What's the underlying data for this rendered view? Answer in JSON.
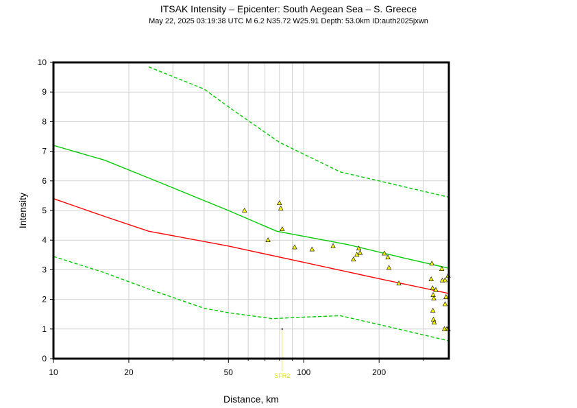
{
  "header": {
    "title": "ITSAK Intensity –  Epicenter: South Aegean Sea – S. Greece",
    "subtitle": "May 22, 2025 03:19:38 UTC   M 6.2   N35.72 W25.91   Depth: 53.0km   ID:auth2025jxwn"
  },
  "chart_data": {
    "type": "scatter",
    "title": "ITSAK Intensity –  Epicenter: South Aegean Sea – S. Greece",
    "xlabel": "Distance, km",
    "ylabel": "Intensity",
    "xscale": "log",
    "xlim": [
      10,
      380
    ],
    "ylim": [
      0,
      10
    ],
    "x_ticks": [
      10,
      20,
      50,
      100,
      200
    ],
    "x_tick_labels": [
      "10",
      "20",
      "50",
      "100",
      "200"
    ],
    "y_ticks": [
      0,
      1,
      2,
      3,
      4,
      5,
      6,
      7,
      8,
      9,
      10
    ],
    "y_tick_labels": [
      "0",
      "1",
      "2",
      "3",
      "4",
      "5",
      "6",
      "7",
      "8",
      "9",
      "10"
    ],
    "grid": true,
    "series": [
      {
        "kind": "line",
        "role": "upper-bound",
        "color": "#00cc00",
        "dash": true,
        "x": [
          24,
          40,
          50,
          80,
          140,
          200,
          380
        ],
        "y": [
          9.85,
          9.1,
          8.5,
          7.3,
          6.3,
          6.0,
          5.45
        ]
      },
      {
        "kind": "line",
        "role": "upper-mean",
        "color": "#00cc00",
        "dash": false,
        "x": [
          10,
          16,
          24,
          50,
          78,
          150,
          250,
          380
        ],
        "y": [
          7.2,
          6.7,
          6.1,
          5.0,
          4.3,
          3.85,
          3.4,
          3.05
        ]
      },
      {
        "kind": "line",
        "role": "mean",
        "color": "#ff0000",
        "dash": false,
        "x": [
          10,
          16,
          24,
          50,
          100,
          200,
          380
        ],
        "y": [
          5.4,
          4.8,
          4.3,
          3.8,
          3.25,
          2.7,
          2.2
        ]
      },
      {
        "kind": "line",
        "role": "lower-bound",
        "color": "#00cc00",
        "dash": true,
        "x": [
          10,
          16,
          24,
          40,
          50,
          75,
          100,
          140,
          200,
          380
        ],
        "y": [
          3.45,
          2.9,
          2.35,
          1.7,
          1.55,
          1.35,
          1.4,
          1.45,
          1.15,
          0.6
        ]
      },
      {
        "kind": "points",
        "role": "stations",
        "color": "#ffff00",
        "x": [
          58,
          72,
          80,
          81,
          82,
          92,
          108,
          131,
          158,
          163,
          166,
          168,
          210,
          217,
          219,
          240,
          323,
          325,
          327,
          328,
          329,
          330,
          331,
          332,
          337,
          356,
          358,
          365,
          367,
          367,
          370,
          373,
          378,
          382
        ],
        "y": [
          5.0,
          4.0,
          5.25,
          5.07,
          4.37,
          3.76,
          3.69,
          3.8,
          3.35,
          3.51,
          3.72,
          3.57,
          3.55,
          3.42,
          3.07,
          2.54,
          2.68,
          3.21,
          2.38,
          1.62,
          2.15,
          1.32,
          2.03,
          1.22,
          2.32,
          3.03,
          2.64,
          1.0,
          2.65,
          1.84,
          2.08,
          1.0,
          2.8,
          1.0
        ]
      },
      {
        "kind": "marker",
        "role": "station-marker",
        "name": "SFR2",
        "color": "#e6e600",
        "x": 82,
        "y": 1.0
      }
    ]
  }
}
